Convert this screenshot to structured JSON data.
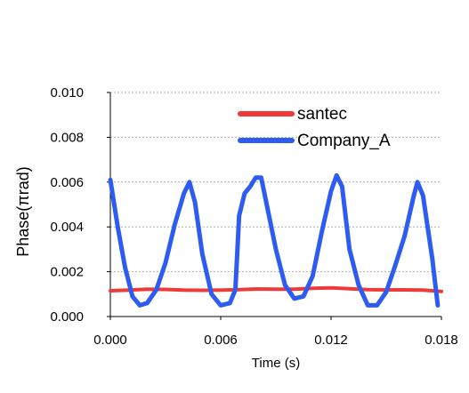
{
  "chart_data": {
    "type": "line",
    "title": "",
    "xlabel": "Time (s)",
    "ylabel": "Phase(πrad)",
    "xlim": [
      0,
      0.018
    ],
    "ylim": [
      0,
      0.01
    ],
    "x_ticks": [
      "0.000",
      "0.006",
      "0.012",
      "0.018"
    ],
    "y_ticks": [
      "0.000",
      "0.002",
      "0.004",
      "0.006",
      "0.008",
      "0.010"
    ],
    "grid": "horizontal dashed",
    "legend_position": "top-right",
    "series": [
      {
        "name": "santec",
        "color": "#f03a3a",
        "x": [
          0,
          0.001,
          0.002,
          0.003,
          0.004,
          0.005,
          0.006,
          0.007,
          0.008,
          0.009,
          0.01,
          0.011,
          0.012,
          0.013,
          0.014,
          0.015,
          0.016,
          0.017,
          0.018
        ],
        "y": [
          0.00115,
          0.00118,
          0.00122,
          0.00121,
          0.00118,
          0.00117,
          0.00118,
          0.0012,
          0.00123,
          0.00122,
          0.00122,
          0.00126,
          0.00128,
          0.00124,
          0.0012,
          0.00119,
          0.00119,
          0.00118,
          0.00112
        ]
      },
      {
        "name": "Company_A",
        "color": "#2f5cf0",
        "x": [
          0,
          0.0004,
          0.0008,
          0.0012,
          0.0016,
          0.002,
          0.0025,
          0.003,
          0.0035,
          0.004,
          0.0043,
          0.0046,
          0.005,
          0.0055,
          0.006,
          0.0065,
          0.0068,
          0.007,
          0.0073,
          0.0076,
          0.0079,
          0.0082,
          0.0085,
          0.009,
          0.0095,
          0.01,
          0.0105,
          0.011,
          0.0115,
          0.012,
          0.0123,
          0.0126,
          0.013,
          0.0135,
          0.014,
          0.0145,
          0.015,
          0.0155,
          0.016,
          0.0165,
          0.0167,
          0.017,
          0.0175,
          0.0178
        ],
        "y": [
          0.0061,
          0.004,
          0.0022,
          0.0009,
          0.0005,
          0.0006,
          0.0012,
          0.0024,
          0.0041,
          0.0055,
          0.006,
          0.0051,
          0.0028,
          0.001,
          0.0005,
          0.0006,
          0.0012,
          0.0045,
          0.0055,
          0.0058,
          0.0062,
          0.0062,
          0.005,
          0.003,
          0.0014,
          0.0008,
          0.0009,
          0.0018,
          0.0038,
          0.0056,
          0.0063,
          0.0058,
          0.003,
          0.0014,
          0.0005,
          0.0005,
          0.0011,
          0.0023,
          0.0036,
          0.0054,
          0.006,
          0.0054,
          0.0026,
          0.0005
        ]
      }
    ]
  }
}
